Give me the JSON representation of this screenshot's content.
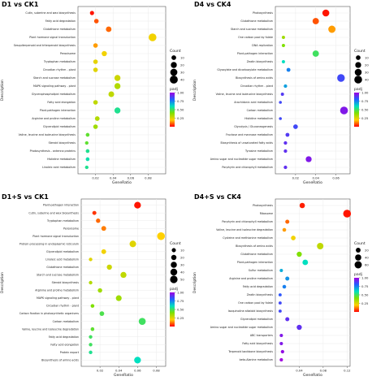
{
  "chart_data": [
    {
      "type": "scatter",
      "title": "D1 vs CK1",
      "xlabel": "GeneRatio",
      "ylabel": "Description",
      "xlim": [
        0,
        0.1
      ],
      "xticks": [
        "0.02",
        "0.04",
        "0.06",
        "0.08"
      ],
      "xtick_values": [
        0.02,
        0.04,
        0.06,
        0.08
      ],
      "size_legend": {
        "title": "Count",
        "values": [
          "10",
          "20",
          "30",
          "40"
        ]
      },
      "color_legend": {
        "title": "padj",
        "ticks": [
          "1.00",
          "0.75",
          "0.50",
          "0.25"
        ]
      },
      "points": [
        {
          "term": "Linoleic acid metabolism",
          "generatio": 0.01,
          "count": 4,
          "padj": 0.55
        },
        {
          "term": "Histidine metabolism",
          "generatio": 0.011,
          "count": 5,
          "padj": 0.58
        },
        {
          "term": "Photosynthesis - antenna proteins",
          "generatio": 0.011,
          "count": 5,
          "padj": 0.55
        },
        {
          "term": "Steroid biosynthesis",
          "generatio": 0.01,
          "count": 4,
          "padj": 0.45
        },
        {
          "term": "Valine, leucine and isoleucine biosynthesis",
          "generatio": 0.011,
          "count": 5,
          "padj": 0.45
        },
        {
          "term": "Glycerolipid metabolism",
          "generatio": 0.02,
          "count": 9,
          "padj": 0.35
        },
        {
          "term": "Arginine and proline metabolism",
          "generatio": 0.022,
          "count": 10,
          "padj": 0.32
        },
        {
          "term": "Plant-pathogen interaction",
          "generatio": 0.045,
          "count": 20,
          "padj": 0.55
        },
        {
          "term": "Fatty acid elongation",
          "generatio": 0.02,
          "count": 9,
          "padj": 0.3
        },
        {
          "term": "Glycerophospholipid metabolism",
          "generatio": 0.038,
          "count": 17,
          "padj": 0.3
        },
        {
          "term": "MAPK signaling pathway - plant",
          "generatio": 0.045,
          "count": 20,
          "padj": 0.32
        },
        {
          "term": "Starch and sucrose metabolism",
          "generatio": 0.045,
          "count": 20,
          "padj": 0.28
        },
        {
          "term": "Circadian rhythm - plant",
          "generatio": 0.02,
          "count": 9,
          "padj": 0.25
        },
        {
          "term": "Tryptophan metabolism",
          "generatio": 0.02,
          "count": 9,
          "padj": 0.24
        },
        {
          "term": "Peroxisome",
          "generatio": 0.03,
          "count": 13,
          "padj": 0.22
        },
        {
          "term": "Sesquiterpenoid and triterpenoid biosynthesis",
          "generatio": 0.02,
          "count": 9,
          "padj": 0.15
        },
        {
          "term": "Plant hormone signal transduction",
          "generatio": 0.085,
          "count": 38,
          "padj": 0.22
        },
        {
          "term": "Glutathione metabolism",
          "generatio": 0.035,
          "count": 16,
          "padj": 0.1
        },
        {
          "term": "Fatty acid degradation",
          "generatio": 0.021,
          "count": 9,
          "padj": 0.08
        },
        {
          "term": "Cutin, suberine and wax biosynthesis",
          "generatio": 0.016,
          "count": 7,
          "padj": 0.02
        }
      ]
    },
    {
      "type": "scatter",
      "title": "D4 vs CK4",
      "xlabel": "GeneRatio",
      "ylabel": "Description",
      "xlim": [
        0,
        0.074
      ],
      "xticks": [
        "0.02",
        "0.04",
        "0.06"
      ],
      "xtick_values": [
        0.02,
        0.04,
        0.06
      ],
      "size_legend": {
        "title": "Count",
        "values": [
          "10",
          "20",
          "30",
          "40"
        ]
      },
      "color_legend": {
        "title": "padj",
        "ticks": [
          "1.00",
          "0.75",
          "0.50",
          "0.25"
        ]
      },
      "points": [
        {
          "term": "Porphyrin and chlorophyll metabolism",
          "generatio": 0.01,
          "count": 4,
          "padj": 0.9
        },
        {
          "term": "Amino sugar and nucleotide sugar metabolism",
          "generatio": 0.033,
          "count": 20,
          "padj": 0.95
        },
        {
          "term": "Tyrosine metabolism",
          "generatio": 0.01,
          "count": 4,
          "padj": 0.9
        },
        {
          "term": "Biosynthesis of unsaturated fatty acids",
          "generatio": 0.01,
          "count": 4,
          "padj": 0.9
        },
        {
          "term": "Fructose and mannose metabolism",
          "generatio": 0.012,
          "count": 6,
          "padj": 0.88
        },
        {
          "term": "Glycolysis / Gluconeogenesis",
          "generatio": 0.02,
          "count": 10,
          "padj": 0.85
        },
        {
          "term": "Histidine metabolism",
          "generatio": 0.005,
          "count": 2,
          "padj": 0.85
        },
        {
          "term": "Carbon metabolism",
          "generatio": 0.068,
          "count": 40,
          "padj": 0.95
        },
        {
          "term": "Arachidonic acid metabolism",
          "generatio": 0.005,
          "count": 2,
          "padj": 0.85
        },
        {
          "term": "Valine, leucine and isoleucine biosynthesis",
          "generatio": 0.007,
          "count": 3,
          "padj": 0.88
        },
        {
          "term": "Circadian rhythm - plant",
          "generatio": 0.01,
          "count": 4,
          "padj": 0.7
        },
        {
          "term": "Biosynthesis of amino acids",
          "generatio": 0.065,
          "count": 38,
          "padj": 0.85
        },
        {
          "term": "Glyoxylate and dicarboxylate metabolism",
          "generatio": 0.013,
          "count": 6,
          "padj": 0.75
        },
        {
          "term": "Zeatin biosynthesis",
          "generatio": 0.008,
          "count": 3,
          "padj": 0.6
        },
        {
          "term": "Plant-pathogen interaction",
          "generatio": 0.04,
          "count": 24,
          "padj": 0.5
        },
        {
          "term": "DNA replication",
          "generatio": 0.008,
          "count": 3,
          "padj": 0.4
        },
        {
          "term": "One carbon pool by folate",
          "generatio": 0.008,
          "count": 3,
          "padj": 0.35
        },
        {
          "term": "Starch and sucrose metabolism",
          "generatio": 0.056,
          "count": 33,
          "padj": 0.15
        },
        {
          "term": "Glutathione metabolism",
          "generatio": 0.04,
          "count": 24,
          "padj": 0.08
        },
        {
          "term": "Photosynthesis",
          "generatio": 0.05,
          "count": 30,
          "padj": 0.02
        }
      ]
    },
    {
      "type": "scatter",
      "title": "D1+S vs CK1",
      "xlabel": "GeneRatio",
      "ylabel": "Description",
      "xlim": [
        0,
        0.09
      ],
      "xticks": [
        "0.02",
        "0.04",
        "0.06",
        "0.08"
      ],
      "xtick_values": [
        0.02,
        0.04,
        0.06,
        0.08
      ],
      "size_legend": {
        "title": "Count",
        "values": [
          "10",
          "20",
          "30",
          "40",
          "50"
        ]
      },
      "color_legend": {
        "title": "padj",
        "ticks": [
          "1.00",
          "0.75",
          "0.50",
          "0.25"
        ]
      },
      "points": [
        {
          "term": "Biosynthesis of amino acids",
          "generatio": 0.06,
          "count": 38,
          "padj": 0.6
        },
        {
          "term": "Protein export",
          "generatio": 0.01,
          "count": 6,
          "padj": 0.55
        },
        {
          "term": "Fatty acid elongation",
          "generatio": 0.01,
          "count": 6,
          "padj": 0.5
        },
        {
          "term": "Fatty acid degradation",
          "generatio": 0.01,
          "count": 6,
          "padj": 0.5
        },
        {
          "term": "Valine, leucine and isoleucine degradation",
          "generatio": 0.012,
          "count": 7,
          "padj": 0.45
        },
        {
          "term": "Carbon metabolism",
          "generatio": 0.065,
          "count": 42,
          "padj": 0.5
        },
        {
          "term": "Carbon fixation in photosynthetic organisms",
          "generatio": 0.022,
          "count": 14,
          "padj": 0.48
        },
        {
          "term": "Circadian rhythm - plant",
          "generatio": 0.012,
          "count": 7,
          "padj": 0.4
        },
        {
          "term": "MAPK signaling pathway - plant",
          "generatio": 0.04,
          "count": 25,
          "padj": 0.35
        },
        {
          "term": "Arginine and proline metabolism",
          "generatio": 0.02,
          "count": 12,
          "padj": 0.35
        },
        {
          "term": "Steroid biosynthesis",
          "generatio": 0.01,
          "count": 6,
          "padj": 0.32
        },
        {
          "term": "Starch and sucrose metabolism",
          "generatio": 0.045,
          "count": 28,
          "padj": 0.3
        },
        {
          "term": "Glutathione metabolism",
          "generatio": 0.03,
          "count": 19,
          "padj": 0.28
        },
        {
          "term": "Linoleic acid metabolism",
          "generatio": 0.01,
          "count": 6,
          "padj": 0.25
        },
        {
          "term": "Glycerolipid metabolism",
          "generatio": 0.024,
          "count": 15,
          "padj": 0.22
        },
        {
          "term": "Protein processing in endoplasmic reticulum",
          "generatio": 0.055,
          "count": 35,
          "padj": 0.25
        },
        {
          "term": "Plant hormone signal transduction",
          "generatio": 0.085,
          "count": 55,
          "padj": 0.2
        },
        {
          "term": "Peroxisome",
          "generatio": 0.024,
          "count": 15,
          "padj": 0.12
        },
        {
          "term": "Tryptophan metabolism",
          "generatio": 0.018,
          "count": 11,
          "padj": 0.1
        },
        {
          "term": "Cutin, suberine and wax biosynthesis",
          "generatio": 0.014,
          "count": 9,
          "padj": 0.05
        },
        {
          "term": "Plant-pathogen interaction",
          "generatio": 0.06,
          "count": 38,
          "padj": 0.02
        }
      ]
    },
    {
      "type": "scatter",
      "title": "D4+S vs CK4",
      "xlabel": "GeneRatio",
      "ylabel": "Description",
      "xlim": [
        0,
        0.125
      ],
      "xticks": [
        "0.04",
        "0.08",
        "0.12"
      ],
      "xtick_values": [
        0.04,
        0.08,
        0.12
      ],
      "size_legend": {
        "title": "Count",
        "values": [
          "20",
          "40",
          "60"
        ]
      },
      "color_legend": {
        "title": "padj",
        "ticks": [
          "1.00",
          "0.75",
          "0.50",
          "0.25"
        ]
      },
      "points": [
        {
          "term": "beta-Alanine metabolism",
          "generatio": 0.01,
          "count": 6,
          "padj": 1.0
        },
        {
          "term": "Terpenoid backbone biosynthesis",
          "generatio": 0.012,
          "count": 7,
          "padj": 0.98
        },
        {
          "term": "Fatty acid biosynthesis",
          "generatio": 0.01,
          "count": 6,
          "padj": 0.95
        },
        {
          "term": "ABC transporters",
          "generatio": 0.01,
          "count": 6,
          "padj": 0.95
        },
        {
          "term": "Amino sugar and nucleotide sugar metabolism",
          "generatio": 0.04,
          "count": 24,
          "padj": 0.9
        },
        {
          "term": "Glycerolipid metabolism",
          "generatio": 0.02,
          "count": 12,
          "padj": 0.9
        },
        {
          "term": "Isoquinoline alkaloid biosynthesis",
          "generatio": 0.008,
          "count": 5,
          "padj": 0.85
        },
        {
          "term": "One carbon pool by folate",
          "generatio": 0.008,
          "count": 5,
          "padj": 0.85
        },
        {
          "term": "Zeatin biosynthesis",
          "generatio": 0.008,
          "count": 5,
          "padj": 0.82
        },
        {
          "term": "Fatty acid degradation",
          "generatio": 0.015,
          "count": 9,
          "padj": 0.75
        },
        {
          "term": "Arginine and proline metabolism",
          "generatio": 0.02,
          "count": 12,
          "padj": 0.72
        },
        {
          "term": "Sulfur metabolism",
          "generatio": 0.01,
          "count": 6,
          "padj": 0.68
        },
        {
          "term": "Plant-pathogen interaction",
          "generatio": 0.05,
          "count": 30,
          "padj": 0.6
        },
        {
          "term": "Glutathione metabolism",
          "generatio": 0.04,
          "count": 24,
          "padj": 0.4
        },
        {
          "term": "Biosynthesis of amino acids",
          "generatio": 0.075,
          "count": 45,
          "padj": 0.3
        },
        {
          "term": "Cysteine and methionine metabolism",
          "generatio": 0.03,
          "count": 18,
          "padj": 0.22
        },
        {
          "term": "Valine, leucine and isoleucine degradation",
          "generatio": 0.015,
          "count": 9,
          "padj": 0.15
        },
        {
          "term": "Porphyrin and chlorophyll metabolism",
          "generatio": 0.02,
          "count": 12,
          "padj": 0.1
        },
        {
          "term": "Ribosome",
          "generatio": 0.12,
          "count": 72,
          "padj": 0.02
        },
        {
          "term": "Photosynthesis",
          "generatio": 0.045,
          "count": 27,
          "padj": 0.03
        }
      ]
    }
  ]
}
